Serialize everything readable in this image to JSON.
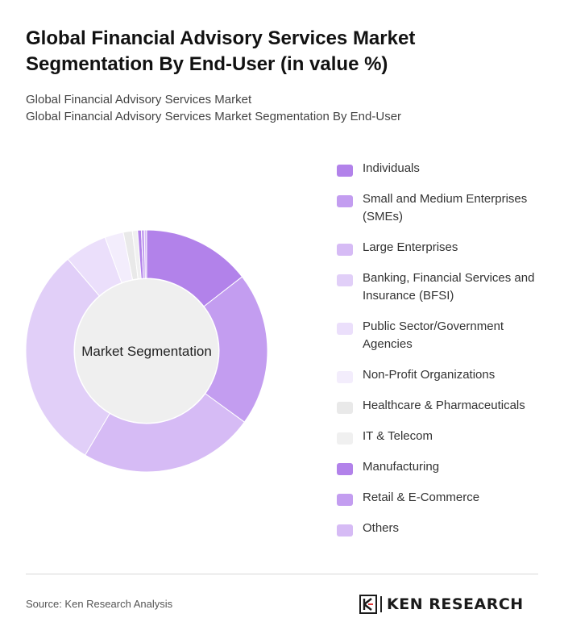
{
  "title": "Global Financial Advisory Services Market Segmentation By End-User (in value %)",
  "subtitle_lines": [
    "Global Financial Advisory Services Market",
    "Global Financial Advisory Services Market Segmentation By End-User"
  ],
  "chart_data": {
    "type": "pie",
    "center_label": "Market Segmentation",
    "categories": [
      "Individuals",
      "Small and Medium Enterprises (SMEs)",
      "Large Enterprises",
      "Banking, Financial Services and Insurance (BFSI)",
      "Public Sector/Government Agencies",
      "Non-Profit Organizations",
      "Healthcare & Pharmaceuticals",
      "IT & Telecom",
      "Manufacturing",
      "Retail & E-Commerce",
      "Others"
    ],
    "values": [
      14.5,
      20.5,
      23.5,
      30.2,
      5.7,
      2.5,
      1.2,
      0.7,
      0.5,
      0.4,
      0.3
    ],
    "colors": [
      "#b282ea",
      "#c39df0",
      "#d6bbf5",
      "#e1cff8",
      "#ebdffb",
      "#f3edfc",
      "#e9e9e9",
      "#f0f0f0",
      "#b282ea",
      "#c39df0",
      "#d6bbf5"
    ],
    "hole_color": "#efefef",
    "legend_position": "right"
  },
  "source": "Source: Ken Research Analysis",
  "brand": {
    "name": "KEN RESEARCH",
    "logo_icon": "ken-research-logo-icon"
  }
}
